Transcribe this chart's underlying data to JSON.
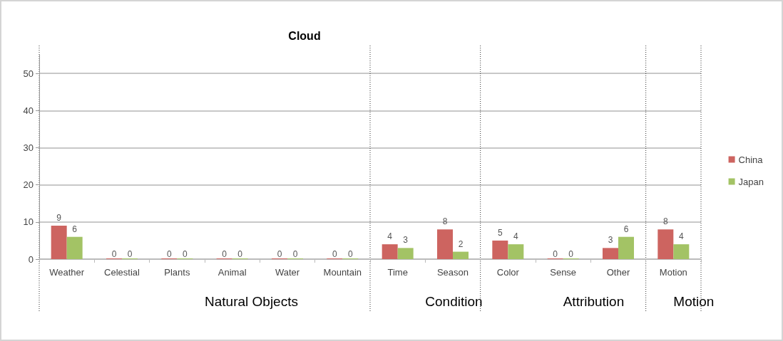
{
  "chart_data": {
    "type": "bar",
    "title": "Cloud",
    "categories": [
      "Weather",
      "Celestial",
      "Plants",
      "Animal",
      "Water",
      "Mountain",
      "Time",
      "Season",
      "Color",
      "Sense",
      "Other",
      "Motion"
    ],
    "series": [
      {
        "name": "China",
        "color": "#cd6460",
        "values": [
          9,
          0,
          0,
          0,
          0,
          0,
          4,
          8,
          5,
          0,
          3,
          8
        ]
      },
      {
        "name": "Japan",
        "color": "#a3c365",
        "values": [
          6,
          0,
          0,
          0,
          0,
          0,
          3,
          2,
          4,
          0,
          6,
          4
        ]
      }
    ],
    "ylim": [
      0,
      55
    ],
    "yticks": [
      0,
      10,
      20,
      30,
      40,
      50
    ],
    "grid": "y",
    "legend": "right",
    "data_labels": true,
    "annotations": [
      "Natural Objects",
      "Condition",
      "Attribution",
      "Motion"
    ]
  }
}
